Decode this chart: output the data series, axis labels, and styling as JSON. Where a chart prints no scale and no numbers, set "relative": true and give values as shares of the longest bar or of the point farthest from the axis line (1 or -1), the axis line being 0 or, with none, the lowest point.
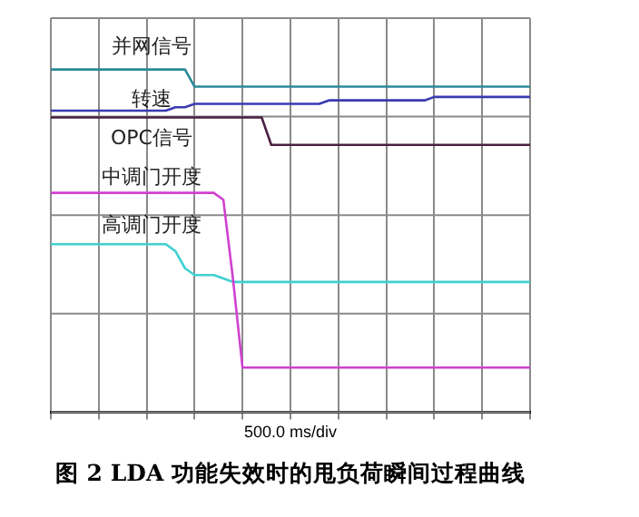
{
  "chart_data": {
    "type": "line",
    "relative": true,
    "title": "图 2 LDA 功能失效时的甩负荷瞬间过程曲线",
    "xlabel": "500.0 ms/div",
    "categories": [
      null,
      null,
      null,
      null,
      null,
      null,
      null,
      null,
      null,
      null,
      null,
      null,
      null,
      null,
      null,
      null,
      null,
      null,
      null,
      null,
      null,
      null,
      null,
      null,
      null,
      null,
      null,
      null,
      null,
      null,
      null,
      null,
      null,
      null,
      null,
      null,
      null,
      null,
      null,
      null,
      null,
      null,
      null,
      null,
      null,
      null,
      null,
      null,
      null,
      null,
      null
    ],
    "tick_labels": false,
    "grid": true,
    "legend": false,
    "marker": "none",
    "line_style": "solid",
    "series": [
      {
        "name": "并网信号",
        "color": "#2a8a9a",
        "values": [
          1,
          1,
          1,
          1,
          1,
          1,
          1,
          1,
          1,
          1,
          1,
          1,
          1,
          1,
          1,
          0.95,
          0.95,
          0.95,
          0.95,
          0.95,
          0.95,
          0.95,
          0.95,
          0.95,
          0.95,
          0.95,
          0.95,
          0.95,
          0.95,
          0.95,
          0.95,
          0.95,
          0.95,
          0.95,
          0.95,
          0.95,
          0.95,
          0.95,
          0.95,
          0.95,
          0.95,
          0.95,
          0.95,
          0.95,
          0.95,
          0.95,
          0.95,
          0.95,
          0.95,
          0.95,
          0.95
        ]
      },
      {
        "name": "转速",
        "color": "#3a3ab0",
        "values": [
          0.88,
          0.88,
          0.88,
          0.88,
          0.88,
          0.88,
          0.88,
          0.88,
          0.88,
          0.88,
          0.88,
          0.88,
          0.88,
          0.89,
          0.89,
          0.9,
          0.9,
          0.9,
          0.9,
          0.9,
          0.9,
          0.9,
          0.9,
          0.9,
          0.9,
          0.9,
          0.9,
          0.9,
          0.9,
          0.91,
          0.91,
          0.91,
          0.91,
          0.91,
          0.91,
          0.91,
          0.91,
          0.91,
          0.91,
          0.91,
          0.92,
          0.92,
          0.92,
          0.92,
          0.92,
          0.92,
          0.92,
          0.92,
          0.92,
          0.92,
          0.92
        ]
      },
      {
        "name": "OPC信号",
        "color": "#4a2040",
        "values": [
          0.86,
          0.86,
          0.86,
          0.86,
          0.86,
          0.86,
          0.86,
          0.86,
          0.86,
          0.86,
          0.86,
          0.86,
          0.86,
          0.86,
          0.86,
          0.86,
          0.86,
          0.86,
          0.86,
          0.86,
          0.86,
          0.86,
          0.86,
          0.78,
          0.78,
          0.78,
          0.78,
          0.78,
          0.78,
          0.78,
          0.78,
          0.78,
          0.78,
          0.78,
          0.78,
          0.78,
          0.78,
          0.78,
          0.78,
          0.78,
          0.78,
          0.78,
          0.78,
          0.78,
          0.78,
          0.78,
          0.78,
          0.78,
          0.78,
          0.78,
          0.78
        ]
      },
      {
        "name": "中调门开度",
        "color": "#d040d0",
        "values": [
          0.64,
          0.64,
          0.64,
          0.64,
          0.64,
          0.64,
          0.64,
          0.64,
          0.64,
          0.64,
          0.64,
          0.64,
          0.64,
          0.64,
          0.64,
          0.64,
          0.64,
          0.64,
          0.62,
          0.39,
          0.13,
          0.13,
          0.13,
          0.13,
          0.13,
          0.13,
          0.13,
          0.13,
          0.13,
          0.13,
          0.13,
          0.13,
          0.13,
          0.13,
          0.13,
          0.13,
          0.13,
          0.13,
          0.13,
          0.13,
          0.13,
          0.13,
          0.13,
          0.13,
          0.13,
          0.13,
          0.13,
          0.13,
          0.13,
          0.13,
          0.13
        ]
      },
      {
        "name": "高调门开度",
        "color": "#40d0d0",
        "values": [
          0.49,
          0.49,
          0.49,
          0.49,
          0.49,
          0.49,
          0.49,
          0.49,
          0.49,
          0.49,
          0.49,
          0.49,
          0.49,
          0.47,
          0.42,
          0.4,
          0.4,
          0.4,
          0.39,
          0.38,
          0.38,
          0.38,
          0.38,
          0.38,
          0.38,
          0.38,
          0.38,
          0.38,
          0.38,
          0.38,
          0.38,
          0.38,
          0.38,
          0.38,
          0.38,
          0.38,
          0.38,
          0.38,
          0.38,
          0.38,
          0.38,
          0.38,
          0.38,
          0.38,
          0.38,
          0.38,
          0.38,
          0.38,
          0.38,
          0.38,
          0.38
        ]
      }
    ]
  }
}
